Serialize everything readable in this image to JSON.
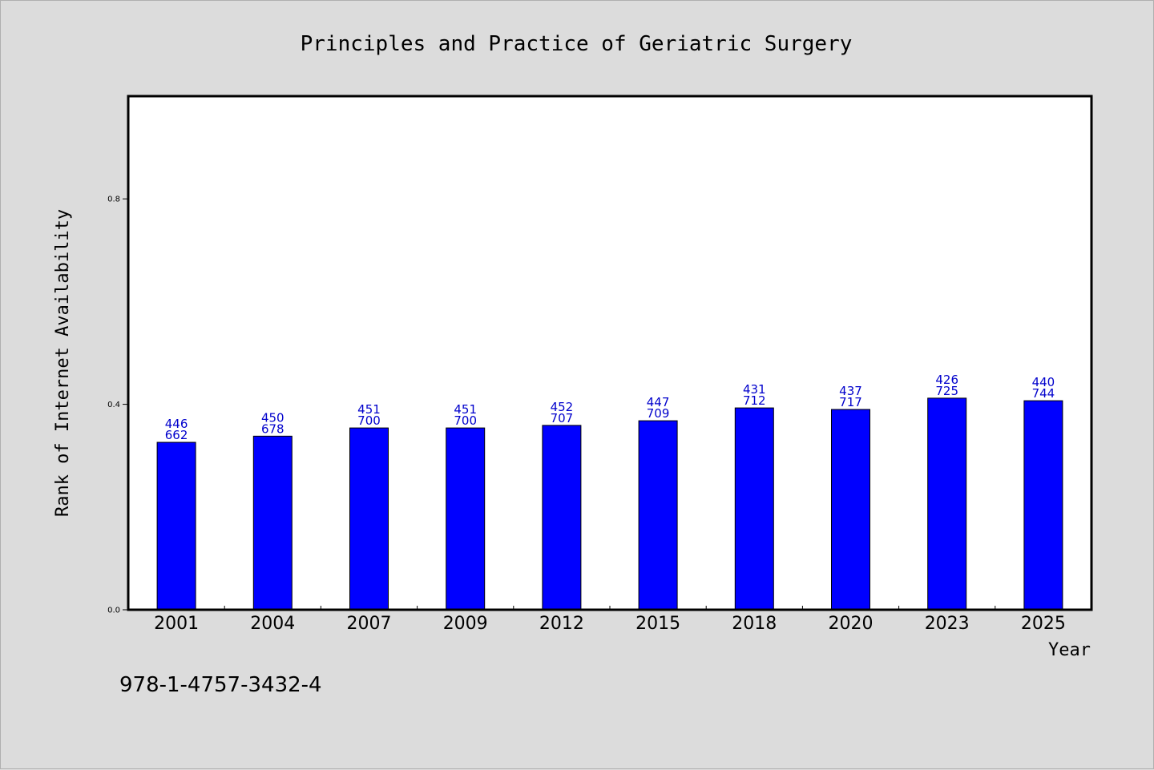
{
  "chart_data": {
    "type": "bar",
    "title": "Principles and Practice of Geriatric Surgery",
    "xlabel": "Year",
    "ylabel": "Rank of Internet Availability",
    "ylim": [
      0,
      1.0
    ],
    "yticks": [
      {
        "value": 0.0,
        "label": "0.0"
      },
      {
        "value": 0.4,
        "label": "0.4"
      },
      {
        "value": 0.8,
        "label": "0.8"
      }
    ],
    "categories": [
      "2001",
      "2004",
      "2007",
      "2009",
      "2012",
      "2015",
      "2018",
      "2020",
      "2023",
      "2025"
    ],
    "values": [
      0.326,
      0.338,
      0.354,
      0.354,
      0.359,
      0.368,
      0.393,
      0.39,
      0.412,
      0.407
    ],
    "labels_top": [
      "446",
      "450",
      "451",
      "451",
      "452",
      "447",
      "431",
      "437",
      "426",
      "440"
    ],
    "labels_bottom": [
      "662",
      "678",
      "700",
      "700",
      "707",
      "709",
      "712",
      "717",
      "725",
      "744"
    ],
    "bar_color": "#0000ff",
    "label_color": "#0000cc",
    "background": "#dcdcdc",
    "plot_background": "#ffffff",
    "grid": false,
    "legend": "none"
  },
  "footer": {
    "isbn": "978-1-4757-3432-4"
  }
}
